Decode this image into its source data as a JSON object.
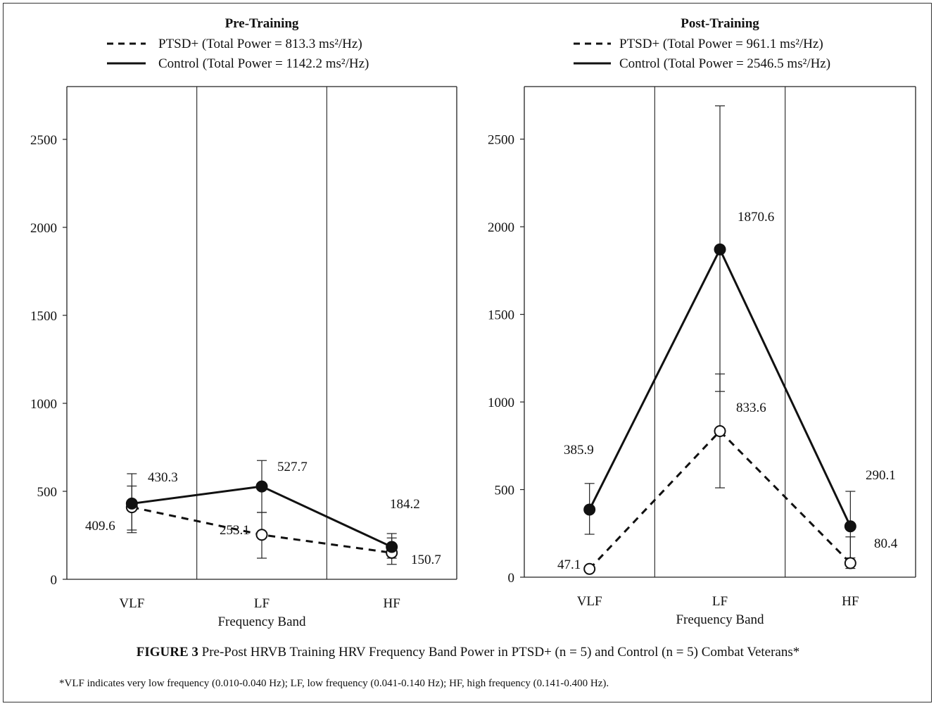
{
  "chart_data": [
    {
      "type": "line",
      "title": "Pre-Training",
      "xlabel": "Frequency Band",
      "ylabel": "",
      "categories": [
        "VLF",
        "LF",
        "HF"
      ],
      "ylim": [
        0,
        2800
      ],
      "yticks": [
        "0",
        "500",
        "1000",
        "1500",
        "2000",
        "2500"
      ],
      "series": [
        {
          "name": "PTSD+ (Total Power = 813.3 ms²/Hz)",
          "style": "dashed",
          "marker": "open-circle",
          "values": [
            409.6,
            253.1,
            150.7
          ],
          "labels": [
            "409.6",
            "253.1",
            "150.7"
          ],
          "err_upper": [
            530,
            380,
            235
          ],
          "err_lower": [
            265,
            120,
            85
          ]
        },
        {
          "name": "Control (Total Power = 1142.2 ms²/Hz)",
          "style": "solid",
          "marker": "filled-circle",
          "values": [
            430.3,
            527.7,
            184.2
          ],
          "labels": [
            "430.3",
            "527.7",
            "184.2"
          ],
          "err_upper": [
            600,
            675,
            260
          ],
          "err_lower": [
            280,
            380,
            120
          ]
        }
      ]
    },
    {
      "type": "line",
      "title": "Post-Training",
      "xlabel": "Frequency Band",
      "ylabel": "",
      "categories": [
        "VLF",
        "LF",
        "HF"
      ],
      "ylim": [
        0,
        2800
      ],
      "yticks": [
        "0",
        "500",
        "1000",
        "1500",
        "2000",
        "2500"
      ],
      "series": [
        {
          "name": "PTSD+ (Total Power = 961.1 ms²/Hz)",
          "style": "dashed",
          "marker": "open-circle",
          "values": [
            47.1,
            833.6,
            80.4
          ],
          "labels": [
            "47.1",
            "833.6",
            "80.4"
          ],
          "err_upper": [
            null,
            1160,
            230
          ],
          "err_lower": [
            null,
            510,
            50
          ]
        },
        {
          "name": "Control (Total Power = 2546.5 ms²/Hz)",
          "style": "solid",
          "marker": "filled-circle",
          "values": [
            385.9,
            1870.6,
            290.1
          ],
          "labels": [
            "385.9",
            "1870.6",
            "290.1"
          ],
          "err_upper": [
            535,
            2690,
            490
          ],
          "err_lower": [
            245,
            1060,
            110
          ]
        }
      ]
    }
  ],
  "figure": {
    "label": "FIGURE 3",
    "caption": "Pre-Post HRVB Training HRV Frequency Band Power in PTSD+ (n = 5) and Control (n = 5) Combat Veterans*",
    "footnote": "*VLF indicates very low frequency (0.010-0.040 Hz); LF, low frequency (0.041-0.140 Hz); HF, high frequency (0.141-0.400 Hz)."
  }
}
